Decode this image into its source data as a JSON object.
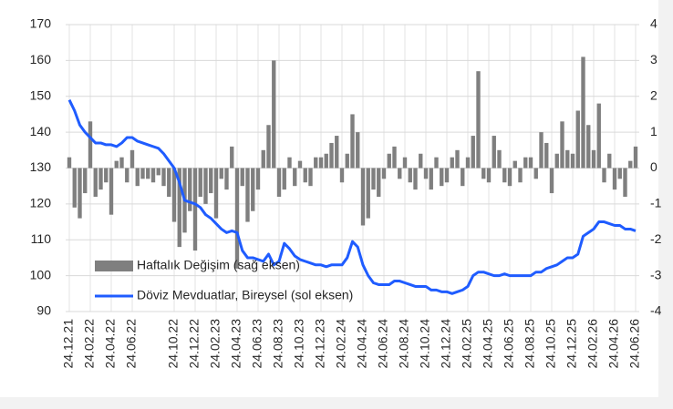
{
  "chart_data": {
    "type": "bar",
    "categories": [
      "24.12.21",
      null,
      null,
      null,
      "24.02.22",
      null,
      null,
      null,
      "24.04.22",
      null,
      null,
      null,
      "24.06.22",
      null,
      null,
      null,
      null,
      null,
      null,
      null,
      "24.10.22",
      null,
      null,
      null,
      "24.12.22",
      null,
      null,
      null,
      "24.02.23",
      null,
      null,
      null,
      "24.04.23",
      null,
      null,
      null,
      "24.06.23",
      null,
      null,
      null,
      "24.08.23",
      null,
      null,
      null,
      "24.10.23",
      null,
      null,
      null,
      "24.12.23",
      null,
      null,
      null,
      "24.02.24",
      null,
      null,
      null,
      "24.04.24",
      null,
      null,
      null,
      "24.06.24",
      null,
      null,
      null,
      "24.08.24",
      null,
      null,
      null,
      "24.10.24",
      null,
      null,
      null,
      "24.12.24",
      null,
      null,
      null,
      "24.02.25",
      null,
      null,
      null,
      "24.04.25",
      null,
      null,
      null,
      "24.06.25",
      null,
      null,
      null,
      "24.08.25",
      null,
      null,
      null,
      "24.10.25",
      null,
      null,
      null,
      "24.12.25",
      null,
      null,
      null,
      "24.02.26",
      null,
      null,
      null,
      "24.04.26",
      null,
      null,
      null,
      "24.06.26"
    ],
    "series": [
      {
        "name": "Haftalık Değişim (sağ eksen)",
        "type": "bar",
        "axis": "y2",
        "color": "#7f7f7f",
        "values": [
          0.3,
          -1.1,
          -1.4,
          -0.7,
          1.3,
          -0.8,
          -0.6,
          -0.4,
          -1.3,
          0.2,
          0.3,
          -0.4,
          0.5,
          -0.5,
          -0.3,
          -0.3,
          -0.4,
          -0.2,
          -0.5,
          -0.8,
          -1.5,
          -2.2,
          -1.8,
          -1.2,
          -2.3,
          -0.8,
          -1.0,
          -0.7,
          -1.4,
          -0.3,
          -0.6,
          0.6,
          -2.8,
          -0.5,
          -1.5,
          -1.2,
          -0.6,
          0.5,
          1.2,
          3.0,
          -0.8,
          -0.6,
          0.3,
          -0.5,
          0.2,
          -0.4,
          -0.5,
          0.3,
          0.3,
          0.4,
          0.7,
          0.9,
          -0.4,
          0.4,
          1.5,
          1.0,
          -1.6,
          -1.4,
          -0.6,
          -0.8,
          -0.3,
          0.4,
          0.6,
          -0.3,
          0.3,
          -0.4,
          -0.6,
          0.4,
          -0.3,
          -0.6,
          0.3,
          -0.5,
          -0.4,
          0.3,
          0.5,
          -0.5,
          0.3,
          0.9,
          2.7,
          -0.3,
          -0.4,
          0.9,
          0.5,
          -0.4,
          -0.5,
          0.2,
          -0.4,
          0.3,
          0.3,
          -0.3,
          1.0,
          0.7,
          -0.7,
          0.4,
          1.3,
          0.5,
          0.4,
          1.6,
          3.1,
          1.2,
          0.5,
          1.8,
          -0.4,
          0.4,
          -0.6,
          -0.3,
          -0.8,
          0.2,
          0.6
        ]
      },
      {
        "name": "Döviz Mevduatlar, Bireysel (sol eksen)",
        "type": "line",
        "color": "#1f5cff",
        "values": [
          149,
          146,
          142,
          140,
          138.5,
          137,
          137,
          136.5,
          136.5,
          136,
          137,
          138.5,
          138.5,
          137.5,
          137,
          136.5,
          136,
          135.5,
          134,
          132,
          130,
          126,
          121,
          120.5,
          120,
          119,
          117,
          116,
          114.5,
          113,
          112,
          112.5,
          112,
          107,
          105,
          105,
          104.5,
          104,
          106,
          103,
          104,
          109,
          107.5,
          105.5,
          104.5,
          104,
          103.5,
          103,
          103,
          102.5,
          103,
          103,
          103,
          105,
          109.5,
          108,
          103,
          100,
          98,
          97.5,
          97.5,
          97.5,
          98.5,
          98.5,
          98,
          97.5,
          97,
          97,
          97,
          96,
          96,
          95.5,
          95.5,
          95,
          95.5,
          96,
          97,
          100,
          101,
          101,
          100.5,
          100,
          100,
          100.5,
          100,
          100,
          100,
          100,
          100,
          101,
          101,
          102,
          102.5,
          103,
          104,
          105,
          105,
          106,
          111,
          112,
          113,
          115,
          115,
          114.5,
          114,
          114,
          113,
          113,
          112.5
        ]
      }
    ],
    "ylim": [
      90,
      170
    ],
    "yticks": [
      90,
      100,
      110,
      120,
      130,
      140,
      150,
      160,
      170
    ],
    "y2lim": [
      -4,
      4
    ],
    "y2ticks": [
      -4,
      -3,
      -2,
      -1,
      0,
      1,
      2,
      3,
      4
    ],
    "grid": true
  }
}
